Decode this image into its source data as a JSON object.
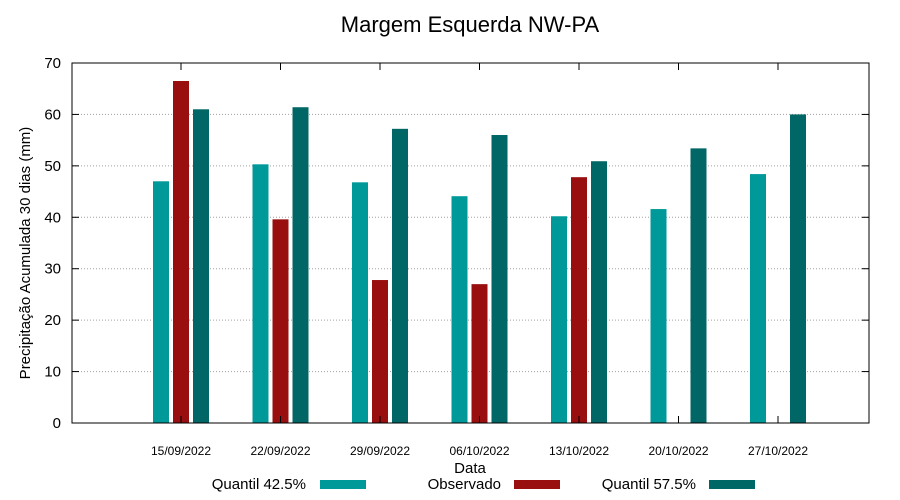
{
  "chart_data": {
    "type": "bar",
    "title": "Margem Esquerda NW-PA",
    "xlabel": "Data",
    "ylabel": "Precipitação Acumulada 30 dias (mm)",
    "ylim": [
      0,
      70
    ],
    "yticks": [
      "0",
      "10",
      "20",
      "30",
      "40",
      "50",
      "60",
      "70"
    ],
    "grid": true,
    "legend_position": "bottom",
    "categories": [
      "15/09/2022",
      "22/09/2022",
      "29/09/2022",
      "06/10/2022",
      "13/10/2022",
      "20/10/2022",
      "27/10/2022"
    ],
    "series": [
      {
        "name": "Quantil 42.5%",
        "color": "#009999",
        "values": [
          47.0,
          50.3,
          46.8,
          44.1,
          40.2,
          41.6,
          48.4
        ]
      },
      {
        "name": "Observado",
        "color": "#990f0f",
        "values": [
          66.5,
          39.6,
          27.8,
          27.0,
          47.8,
          null,
          null
        ]
      },
      {
        "name": "Quantil 57.5%",
        "color": "#006666",
        "values": [
          61.0,
          61.4,
          57.2,
          56.0,
          50.9,
          53.4,
          60.0
        ]
      }
    ]
  }
}
